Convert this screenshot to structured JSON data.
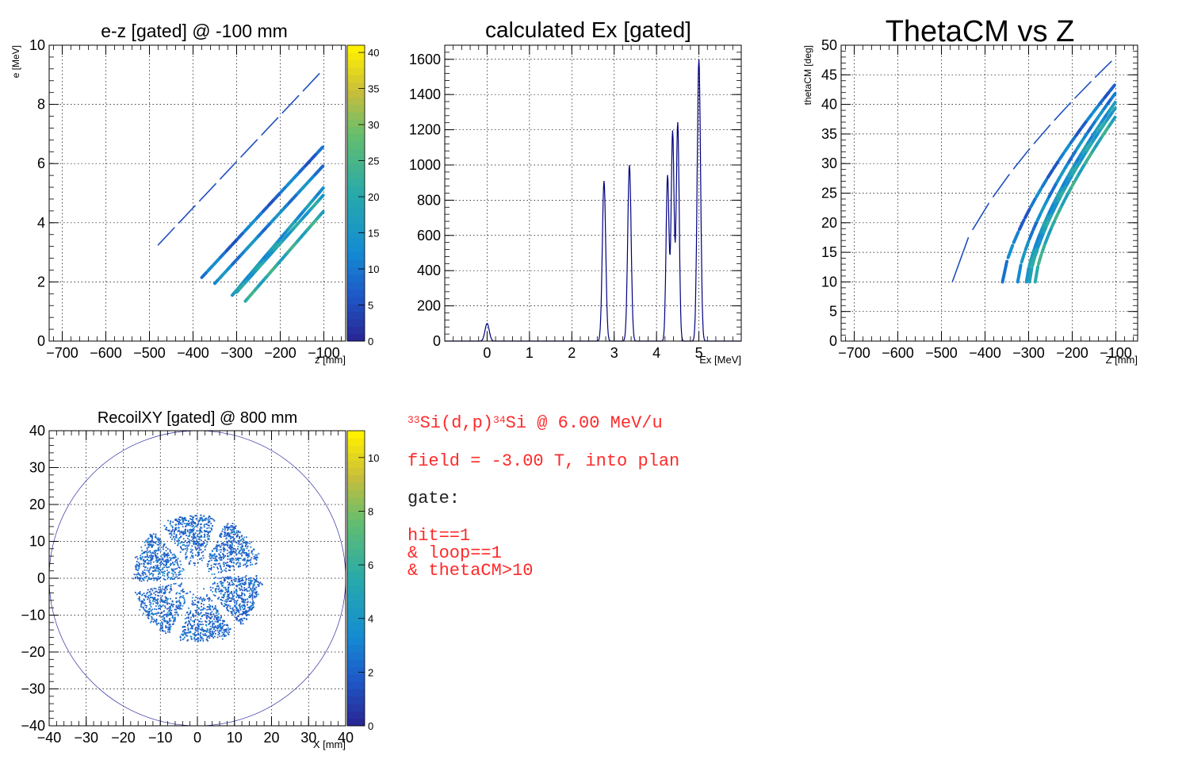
{
  "chart_data": [
    {
      "type": "heatmap",
      "title": "e-z [gated] @  -100 mm",
      "xlabel": "z [mm]",
      "ylabel": "e [MeV]",
      "xlim": [
        -730,
        -50
      ],
      "ylim": [
        0,
        10
      ],
      "xticks": [
        -700,
        -600,
        -500,
        -400,
        -300,
        -200,
        -100
      ],
      "yticks": [
        0,
        2,
        4,
        6,
        8,
        10
      ],
      "grid": true,
      "colorbar": {
        "min": 0,
        "max": 41,
        "ticks": [
          0,
          5,
          10,
          15,
          20,
          25,
          30,
          35,
          40
        ]
      },
      "bands": [
        {
          "z": [
            -480,
            -100
          ],
          "e": [
            3.25,
            9.2
          ],
          "count": 8
        },
        {
          "z": [
            -380,
            -100
          ],
          "e": [
            2.15,
            6.6
          ],
          "count": 20
        },
        {
          "z": [
            -350,
            -100
          ],
          "e": [
            1.95,
            5.95
          ],
          "count": 25
        },
        {
          "z": [
            -310,
            -100
          ],
          "e": [
            1.55,
            5.2
          ],
          "count": 32
        },
        {
          "z": [
            -300,
            -100
          ],
          "e": [
            1.65,
            4.95
          ],
          "count": 30
        },
        {
          "z": [
            -280,
            -100
          ],
          "e": [
            1.35,
            4.4
          ],
          "count": 24
        }
      ]
    },
    {
      "type": "line",
      "title": "calculated Ex [gated]",
      "xlabel": "Ex [MeV]",
      "ylabel": "",
      "xlim": [
        -1,
        6
      ],
      "ylim": [
        0,
        1680
      ],
      "xticks": [
        0,
        1,
        2,
        3,
        4,
        5
      ],
      "yticks": [
        0,
        200,
        400,
        600,
        800,
        1000,
        1200,
        1400,
        1600
      ],
      "grid": true,
      "peaks": [
        {
          "x": 0.0,
          "y": 100,
          "width": 0.05
        },
        {
          "x": 2.76,
          "y": 910,
          "width": 0.04
        },
        {
          "x": 3.36,
          "y": 1000,
          "width": 0.04
        },
        {
          "x": 4.26,
          "y": 940,
          "width": 0.035
        },
        {
          "x": 4.38,
          "y": 1190,
          "width": 0.035
        },
        {
          "x": 4.5,
          "y": 1240,
          "width": 0.035
        },
        {
          "x": 5.0,
          "y": 1600,
          "width": 0.04
        }
      ]
    },
    {
      "type": "scatter",
      "title": "ThetaCM vs Z",
      "xlabel": "Z [mm]",
      "ylabel": "thetaCM [deg]",
      "xlim": [
        -730,
        -50
      ],
      "ylim": [
        0,
        50
      ],
      "xticks": [
        -700,
        -600,
        -500,
        -400,
        -300,
        -200,
        -100
      ],
      "yticks": [
        0,
        5,
        10,
        15,
        20,
        25,
        30,
        35,
        40,
        45,
        50
      ],
      "grid": true,
      "curves": [
        {
          "z0": -475,
          "theta_end": 48.0,
          "count": 8
        },
        {
          "z0": -360,
          "theta_end": 43.5,
          "count": 20
        },
        {
          "z0": -325,
          "theta_end": 42.0,
          "count": 25
        },
        {
          "z0": -305,
          "theta_end": 40.5,
          "count": 32
        },
        {
          "z0": -298,
          "theta_end": 39.5,
          "count": 30
        },
        {
          "z0": -285,
          "theta_end": 38.0,
          "count": 24
        }
      ]
    },
    {
      "type": "heatmap",
      "title": "RecoilXY [gated] @  800 mm",
      "xlabel": "X [mm]",
      "ylabel": "",
      "xlim": [
        -40,
        40
      ],
      "ylim": [
        -40,
        40
      ],
      "xticks": [
        -40,
        -30,
        -20,
        -10,
        0,
        10,
        20,
        30,
        40
      ],
      "yticks": [
        -40,
        -30,
        -20,
        -10,
        0,
        10,
        20,
        30,
        40
      ],
      "grid": true,
      "circle_radius": 40,
      "detector": {
        "r_inner": 3.5,
        "r_outer": 17,
        "sectors": 6,
        "start_deg": 8,
        "gap_deg": 10
      },
      "colorbar": {
        "min": 0,
        "max": 11,
        "ticks": [
          0,
          2,
          4,
          6,
          8,
          10
        ]
      }
    }
  ],
  "info": {
    "reaction": {
      "a1": "33",
      "p1": "Si(d,p)",
      "a2": "34",
      "p2": "Si @ 6.00 MeV/u"
    },
    "field": "field = -3.00 T, into plan",
    "gate_label": "gate:",
    "gate_lines": [
      "hit==1",
      "& loop==1",
      "& thetaCM>10"
    ]
  },
  "colors": {
    "accent_text": "#ff2a2a",
    "hist_line": "#000080",
    "circle": "#3030a0"
  }
}
